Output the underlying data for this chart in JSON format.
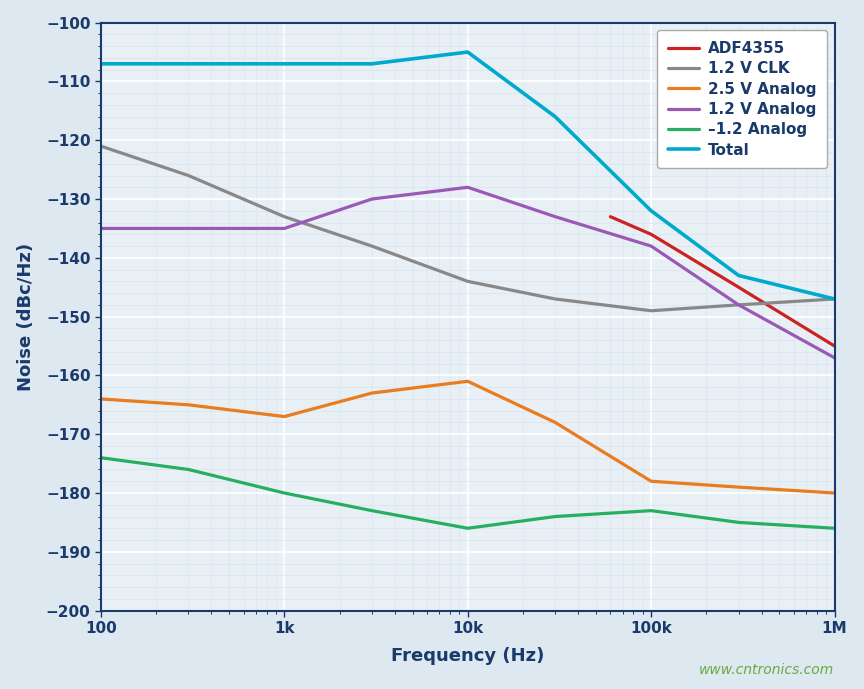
{
  "title": "",
  "xlabel": "Frequency (Hz)",
  "ylabel": "Noise (dBc/Hz)",
  "xlim": [
    100,
    1000000
  ],
  "ylim": [
    -200,
    -100
  ],
  "yticks": [
    -200,
    -190,
    -180,
    -170,
    -160,
    -150,
    -140,
    -130,
    -120,
    -110,
    -100
  ],
  "ytick_labels": [
    "−200",
    "−190",
    "−180",
    "−170",
    "−160",
    "−150",
    "−140",
    "−130",
    "−120",
    "−110",
    "−100"
  ],
  "background_color": "#dde8f0",
  "plot_bg_color": "#e8eff5",
  "grid_color": "#ffffff",
  "grid_minor_color": "#dce6ef",
  "watermark": "www.cntronics.com",
  "series": [
    {
      "label": "ADF4355",
      "color": "#cc2222",
      "linewidth": 2.3,
      "x": [
        60000,
        100000,
        300000,
        1000000
      ],
      "y": [
        -133,
        -136,
        -145,
        -155
      ]
    },
    {
      "label": "1.2 V CLK",
      "color": "#888888",
      "linewidth": 2.3,
      "x": [
        100,
        300,
        1000,
        3000,
        10000,
        30000,
        100000,
        300000,
        1000000
      ],
      "y": [
        -121,
        -126,
        -133,
        -138,
        -144,
        -147,
        -149,
        -148,
        -147
      ]
    },
    {
      "label": "2.5 V Analog",
      "color": "#e87c1e",
      "linewidth": 2.3,
      "x": [
        100,
        300,
        1000,
        3000,
        10000,
        30000,
        100000,
        300000,
        1000000
      ],
      "y": [
        -164,
        -165,
        -167,
        -163,
        -161,
        -168,
        -178,
        -179,
        -180
      ]
    },
    {
      "label": "1.2 V Analog",
      "color": "#9b59b6",
      "linewidth": 2.3,
      "x": [
        100,
        300,
        1000,
        3000,
        10000,
        30000,
        100000,
        300000,
        1000000
      ],
      "y": [
        -135,
        -135,
        -135,
        -130,
        -128,
        -133,
        -138,
        -148,
        -157
      ]
    },
    {
      "label": "–1.2 Analog",
      "color": "#27ae60",
      "linewidth": 2.3,
      "x": [
        100,
        300,
        1000,
        3000,
        10000,
        30000,
        100000,
        300000,
        1000000
      ],
      "y": [
        -174,
        -176,
        -180,
        -183,
        -186,
        -184,
        -183,
        -185,
        -186
      ]
    },
    {
      "label": "Total",
      "color": "#00aacc",
      "linewidth": 2.6,
      "x": [
        100,
        300,
        1000,
        3000,
        10000,
        30000,
        100000,
        300000,
        1000000
      ],
      "y": [
        -107,
        -107,
        -107,
        -107,
        -105,
        -116,
        -132,
        -143,
        -147
      ]
    }
  ],
  "axis_label_color": "#1a3a6b",
  "axis_label_fontsize": 13,
  "tick_label_fontsize": 11,
  "tick_label_color": "#1a3a6b",
  "legend_fontsize": 11,
  "watermark_color": "#6aaa40",
  "watermark_fontsize": 10
}
